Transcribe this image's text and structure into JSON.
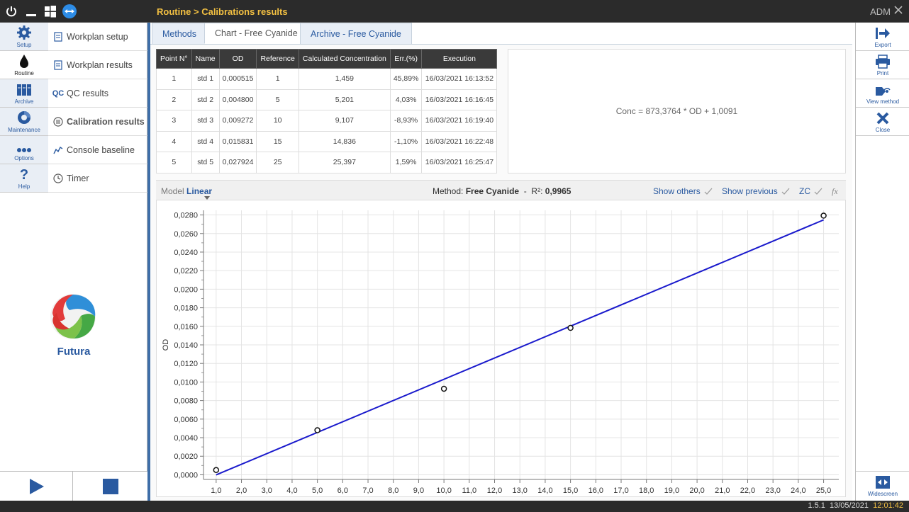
{
  "topbar": {
    "breadcrumb": "Routine > Calibrations results",
    "user": "ADM"
  },
  "left_nav": [
    {
      "label": "Setup",
      "icon": "gear-icon"
    },
    {
      "label": "Routine",
      "icon": "drop-icon"
    },
    {
      "label": "Archive",
      "icon": "archive-icon"
    },
    {
      "label": "Maintenance",
      "icon": "maintenance-icon"
    },
    {
      "label": "Options",
      "icon": "dots-icon"
    },
    {
      "label": "Help",
      "icon": "help-icon"
    }
  ],
  "sub_nav": [
    {
      "label": "Workplan setup",
      "icon": "document-icon"
    },
    {
      "label": "Workplan results",
      "icon": "document-icon"
    },
    {
      "label": "QC results",
      "icon": "qc-icon",
      "icon_text": "QC"
    },
    {
      "label": "Calibration results",
      "icon": "calibration-icon"
    },
    {
      "label": "Console baseline",
      "icon": "baseline-icon"
    },
    {
      "label": "Timer",
      "icon": "clock-icon"
    }
  ],
  "brand": "Futura",
  "tabs": [
    "Methods",
    "Chart - Free Cyanide",
    "Archive - Free Cyanide"
  ],
  "table": {
    "headers": [
      "Point N°",
      "Name",
      "OD",
      "Reference",
      "Calculated Concentration",
      "Err.(%)",
      "Execution"
    ],
    "rows": [
      [
        "1",
        "std 1",
        "0,000515",
        "1",
        "1,459",
        "45,89%",
        "16/03/2021 16:13:52"
      ],
      [
        "2",
        "std 2",
        "0,004800",
        "5",
        "5,201",
        "4,03%",
        "16/03/2021 16:16:45"
      ],
      [
        "3",
        "std 3",
        "0,009272",
        "10",
        "9,107",
        "-8,93%",
        "16/03/2021 16:19:40"
      ],
      [
        "4",
        "std 4",
        "0,015831",
        "15",
        "14,836",
        "-1,10%",
        "16/03/2021 16:22:48"
      ],
      [
        "5",
        "std 5",
        "0,027924",
        "25",
        "25,397",
        "1,59%",
        "16/03/2021 16:25:47"
      ]
    ]
  },
  "equation": "Conc = 873,3764 * OD + 1,0091",
  "model_bar": {
    "model_label": "Model",
    "model_value": "Linear",
    "method_label": "Method:",
    "method_value": "Free Cyanide",
    "sep": "-",
    "r2_label": "R²:",
    "r2_value": "0,9965",
    "show_others": "Show others",
    "show_previous": "Show previous",
    "zc": "ZC",
    "fx": "fx"
  },
  "chart_data": {
    "type": "scatter",
    "ylabel": "OD",
    "xlabel": "",
    "xlim": [
      0.5,
      25.6
    ],
    "ylim": [
      -0.0005,
      0.0285
    ],
    "x_ticks": [
      "1,0",
      "2,0",
      "3,0",
      "4,0",
      "5,0",
      "6,0",
      "7,0",
      "8,0",
      "9,0",
      "10,0",
      "11,0",
      "12,0",
      "13,0",
      "14,0",
      "15,0",
      "16,0",
      "17,0",
      "18,0",
      "19,0",
      "20,0",
      "21,0",
      "22,0",
      "23,0",
      "24,0",
      "25,0"
    ],
    "y_ticks": [
      "0,0000",
      "0,0020",
      "0,0040",
      "0,0060",
      "0,0080",
      "0,0100",
      "0,0120",
      "0,0140",
      "0,0160",
      "0,0180",
      "0,0200",
      "0,0220",
      "0,0240",
      "0,0260",
      "0,0280"
    ],
    "points": {
      "x": [
        1,
        5,
        10,
        15,
        25
      ],
      "y": [
        0.000515,
        0.0048,
        0.009272,
        0.015831,
        0.027924
      ]
    },
    "fit_line": {
      "slope_od_per_conc": 0.001145,
      "intercept_conc": 1.0091,
      "x_range": [
        1,
        25
      ]
    },
    "grid": true,
    "line_color": "#1a1acc"
  },
  "right_bar": [
    {
      "label": "Export",
      "icon": "export-icon"
    },
    {
      "label": "Print",
      "icon": "print-icon"
    },
    {
      "label": "View method",
      "icon": "view-method-icon"
    },
    {
      "label": "Close",
      "icon": "close-icon"
    },
    {
      "label": "Widescreen",
      "icon": "widescreen-icon"
    }
  ],
  "status": {
    "version": "1.5.1",
    "date": "13/05/2021",
    "time": "12:01:42"
  }
}
